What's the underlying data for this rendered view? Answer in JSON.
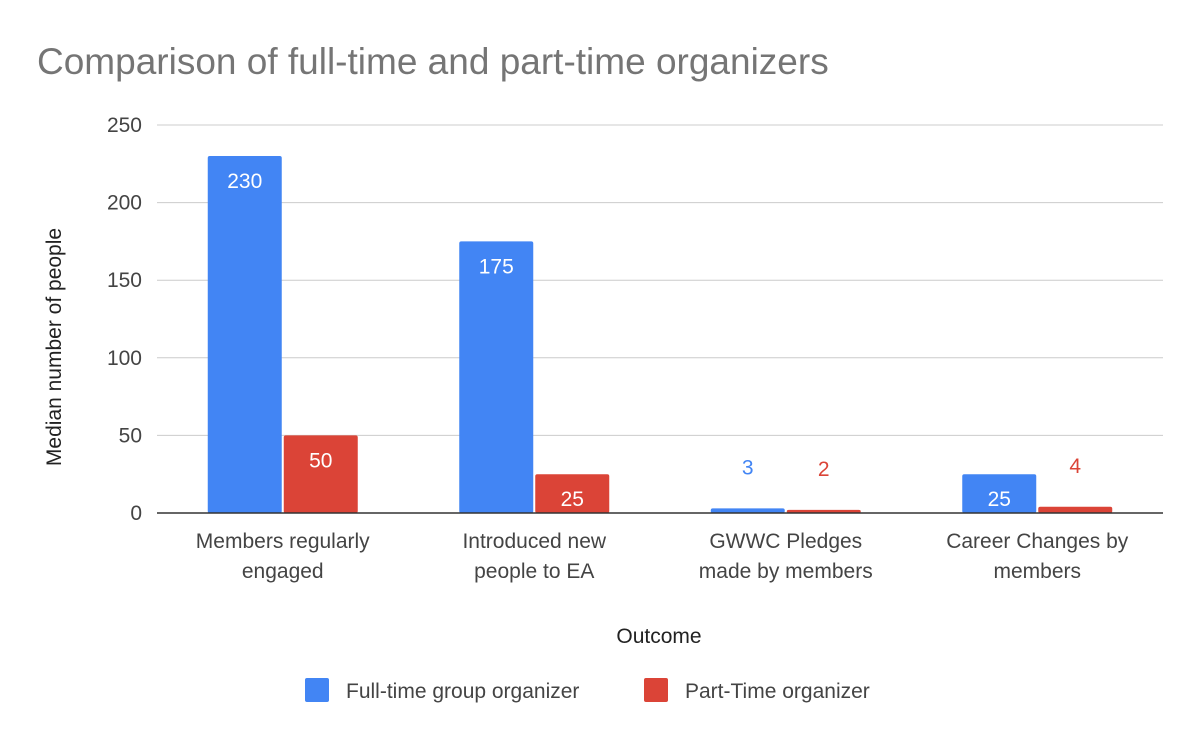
{
  "chart_data": {
    "type": "bar",
    "title": "Comparison of full-time and part-time organizers",
    "xlabel": "Outcome",
    "ylabel": "Median number of people",
    "categories": [
      [
        "Members regularly",
        "engaged"
      ],
      [
        "Introduced new",
        "people to EA"
      ],
      [
        "GWWC Pledges",
        "made by members"
      ],
      [
        "Career Changes by",
        "members"
      ]
    ],
    "series": [
      {
        "name": "Full-time group organizer",
        "color": "#4285f4",
        "values": [
          230,
          175,
          3,
          25
        ]
      },
      {
        "name": "Part-Time organizer",
        "color": "#db4437",
        "values": [
          50,
          25,
          2,
          4
        ]
      }
    ],
    "ylim": [
      0,
      250
    ],
    "yticks": [
      0,
      50,
      100,
      150,
      200,
      250
    ],
    "grid": true,
    "legend_position": "bottom"
  }
}
